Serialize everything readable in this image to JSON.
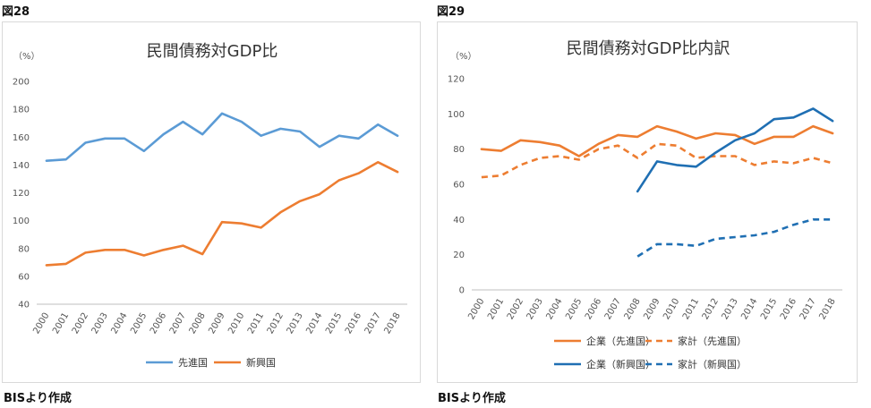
{
  "fig28": {
    "label": "図28",
    "source": "BISより作成",
    "chart_data": {
      "type": "line",
      "title": "民間債務対GDP比",
      "unit": "（%）",
      "ylim": [
        40,
        200
      ],
      "yticks": [
        40,
        60,
        80,
        100,
        120,
        140,
        160,
        180,
        200
      ],
      "categories": [
        "2000",
        "2001",
        "2002",
        "2003",
        "2004",
        "2005",
        "2006",
        "2007",
        "2008",
        "2009",
        "2010",
        "2011",
        "2012",
        "2013",
        "2014",
        "2015",
        "2016",
        "2017",
        "2018"
      ],
      "series": [
        {
          "name": "先進国",
          "color": "#5b9bd5",
          "dash": false,
          "values": [
            143,
            144,
            156,
            159,
            159,
            150,
            162,
            171,
            162,
            177,
            171,
            161,
            166,
            164,
            153,
            161,
            159,
            169,
            161
          ]
        },
        {
          "name": "新興国",
          "color": "#ed7d31",
          "dash": false,
          "values": [
            68,
            69,
            77,
            79,
            79,
            75,
            79,
            82,
            76,
            99,
            98,
            95,
            106,
            114,
            119,
            129,
            134,
            142,
            135
          ]
        }
      ],
      "legend": "bottom",
      "grid": false
    }
  },
  "fig29": {
    "label": "図29",
    "source": "BISより作成",
    "chart_data": {
      "type": "line",
      "title": "民間債務対GDP比内訳",
      "unit": "（%）",
      "ylim": [
        0,
        120
      ],
      "yticks": [
        0,
        20,
        40,
        60,
        80,
        100,
        120
      ],
      "categories": [
        "2000",
        "2001",
        "2002",
        "2003",
        "2004",
        "2005",
        "2006",
        "2007",
        "2008",
        "2009",
        "2010",
        "2011",
        "2012",
        "2013",
        "2014",
        "2015",
        "2016",
        "2017",
        "2018"
      ],
      "series": [
        {
          "name": "企業（先進国）",
          "color": "#ed7d31",
          "dash": false,
          "values": [
            80,
            79,
            85,
            84,
            82,
            76,
            83,
            88,
            87,
            93,
            90,
            86,
            89,
            88,
            83,
            87,
            87,
            93,
            89
          ]
        },
        {
          "name": "家計（先進国）",
          "color": "#ed7d31",
          "dash": true,
          "values": [
            64,
            65,
            71,
            75,
            76,
            74,
            80,
            82,
            75,
            83,
            82,
            75,
            76,
            76,
            71,
            73,
            72,
            75,
            72
          ]
        },
        {
          "name": "企業（新興国）",
          "color": "#1f6fb3",
          "dash": false,
          "values": [
            null,
            null,
            null,
            null,
            null,
            null,
            null,
            null,
            56,
            73,
            71,
            70,
            78,
            85,
            89,
            97,
            98,
            103,
            96
          ]
        },
        {
          "name": "家計（新興国）",
          "color": "#1f6fb3",
          "dash": true,
          "values": [
            null,
            null,
            null,
            null,
            null,
            null,
            null,
            null,
            19,
            26,
            26,
            25,
            29,
            30,
            31,
            33,
            37,
            40,
            40
          ]
        }
      ],
      "legend": "bottom",
      "grid": false
    }
  }
}
